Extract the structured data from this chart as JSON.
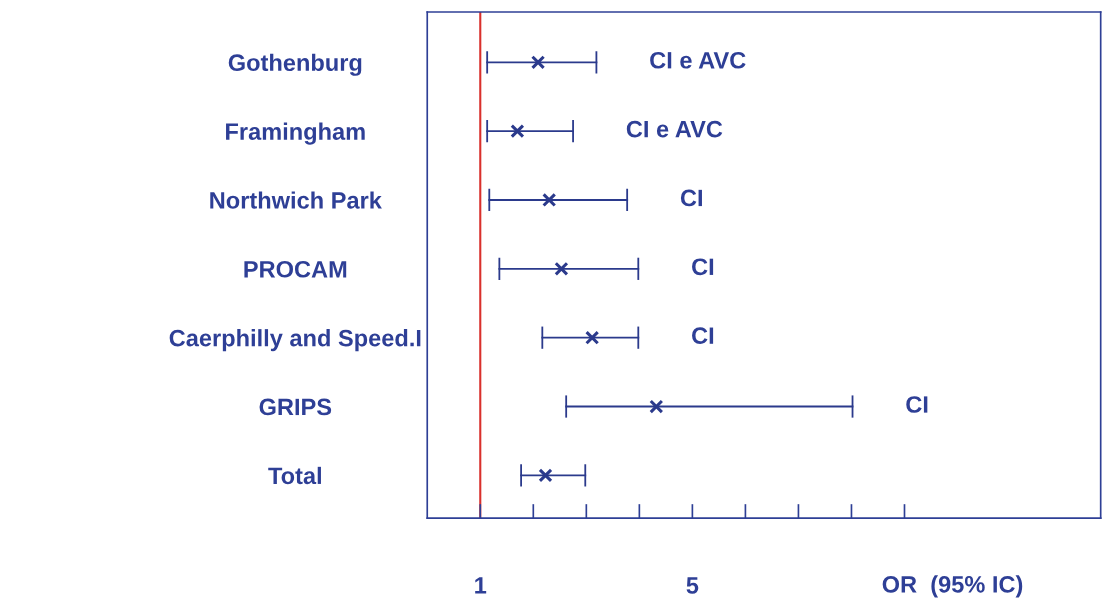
{
  "chart_data": {
    "type": "scatter",
    "orientation": "horizontal",
    "xlabel": "OR  (95% IC)",
    "categories": [
      "Gothenburg",
      "Framingham",
      "Northwich Park",
      "PROCAM",
      "Caerphilly and Speed.I",
      "GRIPS",
      "Total"
    ],
    "values": [
      2.09,
      1.7,
      2.3,
      2.53,
      3.11,
      4.32,
      2.23
    ],
    "errors": [
      [
        1.13,
        3.19
      ],
      [
        1.13,
        2.75
      ],
      [
        1.17,
        3.77
      ],
      [
        1.36,
        3.98
      ],
      [
        2.17,
        3.98
      ],
      [
        2.62,
        8.02
      ],
      [
        1.77,
        2.98
      ]
    ],
    "color": "#2b3a8c",
    "marker": "cross",
    "grid": false,
    "xlim": [
      0,
      12.7
    ],
    "xticks": [
      1,
      {
        "value": 2,
        "label": null
      },
      {
        "value": 3,
        "label": null
      },
      {
        "value": 4,
        "label": null
      },
      5,
      {
        "value": 6,
        "label": null
      },
      {
        "value": 7,
        "label": null
      },
      {
        "value": 8,
        "label": null
      },
      {
        "value": 9,
        "label": null
      }
    ],
    "ref_lines": [
      {
        "axis": "x",
        "value": 1,
        "color": "#d9302c"
      }
    ],
    "annotations": [
      "CI e AVC",
      "CI e AVC",
      "CI",
      "CI",
      "CI",
      "CI"
    ]
  }
}
